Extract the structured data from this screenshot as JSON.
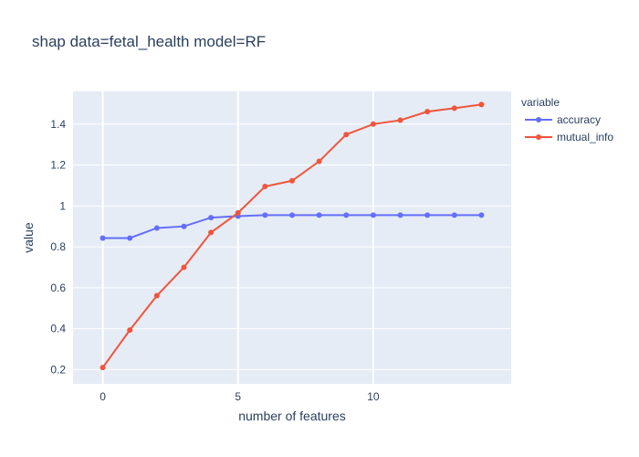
{
  "chart_data": {
    "type": "line",
    "title": "shap data=fetal_health model=RF",
    "xlabel": "number of features",
    "ylabel": "value",
    "x": [
      0,
      1,
      2,
      3,
      4,
      5,
      6,
      7,
      8,
      9,
      10,
      11,
      12,
      13,
      14
    ],
    "xlim": [
      -1.1,
      15.1
    ],
    "ylim": [
      0.13,
      1.56
    ],
    "x_ticks": [
      0,
      5,
      10
    ],
    "y_ticks": [
      0.2,
      0.4,
      0.6,
      0.8,
      1,
      1.2,
      1.4
    ],
    "x_tick_labels": [
      "0",
      "5",
      "10"
    ],
    "y_tick_labels": [
      "0.2",
      "0.4",
      "0.6",
      "0.8",
      "1",
      "1.2",
      "1.4"
    ],
    "grid": true,
    "legend": {
      "title": "variable",
      "placement": "right"
    },
    "series": [
      {
        "name": "accuracy",
        "color": "#636efa",
        "values": [
          0.843,
          0.843,
          0.892,
          0.9,
          0.943,
          0.95,
          0.955,
          0.955,
          0.955,
          0.955,
          0.955,
          0.955,
          0.955,
          0.955,
          0.955
        ]
      },
      {
        "name": "mutual_info",
        "color": "#ef553b",
        "values": [
          0.21,
          0.393,
          0.561,
          0.7,
          0.87,
          0.966,
          1.095,
          1.123,
          1.218,
          1.349,
          1.4,
          1.419,
          1.461,
          1.478,
          1.496
        ]
      }
    ]
  }
}
